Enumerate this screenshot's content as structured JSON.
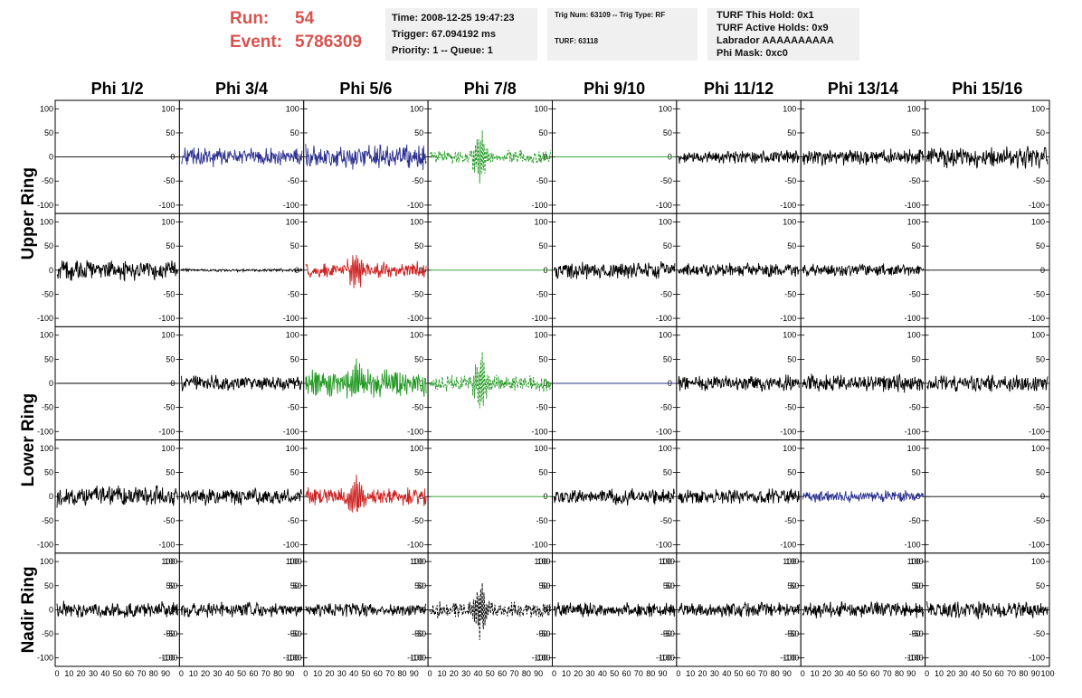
{
  "header": {
    "run_label": "Run:",
    "run_value": "54",
    "event_label": "Event:",
    "event_value": "5786309"
  },
  "info_boxes": {
    "time": "Time: 2008-12-25 19:47:23",
    "trigger": "Trigger: 67.094192 ms",
    "priority": "Priority: 1 -- Queue: 1",
    "trig_num": "Trig Num: 63109 -- Trig Type: RF",
    "turf": "TURF: 63118",
    "turf_hold": "TURF This Hold: 0x1",
    "turf_active": "TURF Active Holds: 0x9",
    "labrador": "Labrador AAAAAAAAAA",
    "phi_mask": "Phi Mask: 0xc0"
  },
  "chart_data": {
    "type": "line",
    "columns": [
      "Phi 1/2",
      "Phi 3/4",
      "Phi 5/6",
      "Phi 7/8",
      "Phi 9/10",
      "Phi 11/12",
      "Phi 13/14",
      "Phi 15/16"
    ],
    "ring_labels": [
      "Upper Ring",
      "Lower Ring",
      "Nadir Ring"
    ],
    "ylim": [
      -110,
      110
    ],
    "y_ticks": [
      "100",
      "50",
      "0",
      "-50",
      "-100"
    ],
    "xlim": [
      0,
      100
    ],
    "x_ticks": [
      "0",
      "10",
      "20",
      "30",
      "40",
      "50",
      "60",
      "70",
      "80",
      "90",
      "100"
    ],
    "colors": {
      "black": "#000000",
      "blue": "#2b2f8f",
      "green": "#229922",
      "red": "#cc2222"
    },
    "panels": [
      {
        "ring_row": 0,
        "col": 0,
        "color": "black",
        "amplitude": 0,
        "dashed": false
      },
      {
        "ring_row": 0,
        "col": 1,
        "color": "blue",
        "amplitude": 14,
        "dashed": false
      },
      {
        "ring_row": 0,
        "col": 2,
        "color": "blue",
        "amplitude": 18,
        "dashed": false
      },
      {
        "ring_row": 0,
        "col": 3,
        "color": "green",
        "amplitude": 10,
        "burst": 55,
        "dashed": true
      },
      {
        "ring_row": 0,
        "col": 4,
        "color": "green",
        "amplitude": 0,
        "dashed": false
      },
      {
        "ring_row": 0,
        "col": 5,
        "color": "black",
        "amplitude": 10,
        "dashed": false
      },
      {
        "ring_row": 0,
        "col": 6,
        "color": "black",
        "amplitude": 12,
        "dashed": false
      },
      {
        "ring_row": 0,
        "col": 7,
        "color": "black",
        "amplitude": 16,
        "dashed": false
      },
      {
        "ring_row": 1,
        "col": 0,
        "color": "black",
        "amplitude": 15,
        "dashed": false
      },
      {
        "ring_row": 1,
        "col": 1,
        "color": "black",
        "amplitude": 2,
        "dashed": false
      },
      {
        "ring_row": 1,
        "col": 2,
        "color": "red",
        "amplitude": 12,
        "burst": 40,
        "dashed": false
      },
      {
        "ring_row": 1,
        "col": 3,
        "color": "green",
        "amplitude": 0,
        "dashed": false
      },
      {
        "ring_row": 1,
        "col": 4,
        "color": "black",
        "amplitude": 14,
        "dashed": false
      },
      {
        "ring_row": 1,
        "col": 5,
        "color": "black",
        "amplitude": 10,
        "dashed": false
      },
      {
        "ring_row": 1,
        "col": 6,
        "color": "black",
        "amplitude": 9,
        "dashed": false
      },
      {
        "ring_row": 1,
        "col": 7,
        "color": "black",
        "amplitude": 0,
        "dashed": false
      },
      {
        "ring_row": 2,
        "col": 0,
        "color": "black",
        "amplitude": 0,
        "dashed": false
      },
      {
        "ring_row": 2,
        "col": 1,
        "color": "black",
        "amplitude": 12,
        "dashed": false
      },
      {
        "ring_row": 2,
        "col": 2,
        "color": "green",
        "amplitude": 20,
        "burst": 45,
        "dashed": false
      },
      {
        "ring_row": 2,
        "col": 3,
        "color": "green",
        "amplitude": 12,
        "burst": 60,
        "dashed": true
      },
      {
        "ring_row": 2,
        "col": 4,
        "color": "blue",
        "amplitude": 0,
        "dashed": false
      },
      {
        "ring_row": 2,
        "col": 5,
        "color": "black",
        "amplitude": 12,
        "dashed": false
      },
      {
        "ring_row": 2,
        "col": 6,
        "color": "black",
        "amplitude": 13,
        "dashed": false
      },
      {
        "ring_row": 2,
        "col": 7,
        "color": "black",
        "amplitude": 13,
        "dashed": false
      },
      {
        "ring_row": 3,
        "col": 0,
        "color": "black",
        "amplitude": 15,
        "dashed": false
      },
      {
        "ring_row": 3,
        "col": 1,
        "color": "black",
        "amplitude": 12,
        "dashed": false
      },
      {
        "ring_row": 3,
        "col": 2,
        "color": "red",
        "amplitude": 13,
        "burst": 45,
        "dashed": false
      },
      {
        "ring_row": 3,
        "col": 3,
        "color": "green",
        "amplitude": 0,
        "dashed": false
      },
      {
        "ring_row": 3,
        "col": 4,
        "color": "black",
        "amplitude": 12,
        "dashed": false
      },
      {
        "ring_row": 3,
        "col": 5,
        "color": "black",
        "amplitude": 11,
        "dashed": false
      },
      {
        "ring_row": 3,
        "col": 6,
        "color": "blue",
        "amplitude": 9,
        "dashed": false
      },
      {
        "ring_row": 3,
        "col": 7,
        "color": "black",
        "amplitude": 0,
        "dashed": false
      },
      {
        "ring_row": 4,
        "col": 0,
        "color": "black",
        "amplitude": 12,
        "dashed": false
      },
      {
        "ring_row": 4,
        "col": 1,
        "color": "black",
        "amplitude": 11,
        "dashed": false
      },
      {
        "ring_row": 4,
        "col": 2,
        "color": "black",
        "amplitude": 10,
        "dashed": false
      },
      {
        "ring_row": 4,
        "col": 3,
        "color": "black",
        "amplitude": 12,
        "burst": 55,
        "dashed": true
      },
      {
        "ring_row": 4,
        "col": 4,
        "color": "black",
        "amplitude": 11,
        "dashed": false
      },
      {
        "ring_row": 4,
        "col": 5,
        "color": "black",
        "amplitude": 11,
        "dashed": false
      },
      {
        "ring_row": 4,
        "col": 6,
        "color": "black",
        "amplitude": 12,
        "dashed": false
      },
      {
        "ring_row": 4,
        "col": 7,
        "color": "black",
        "amplitude": 13,
        "dashed": false
      }
    ]
  }
}
